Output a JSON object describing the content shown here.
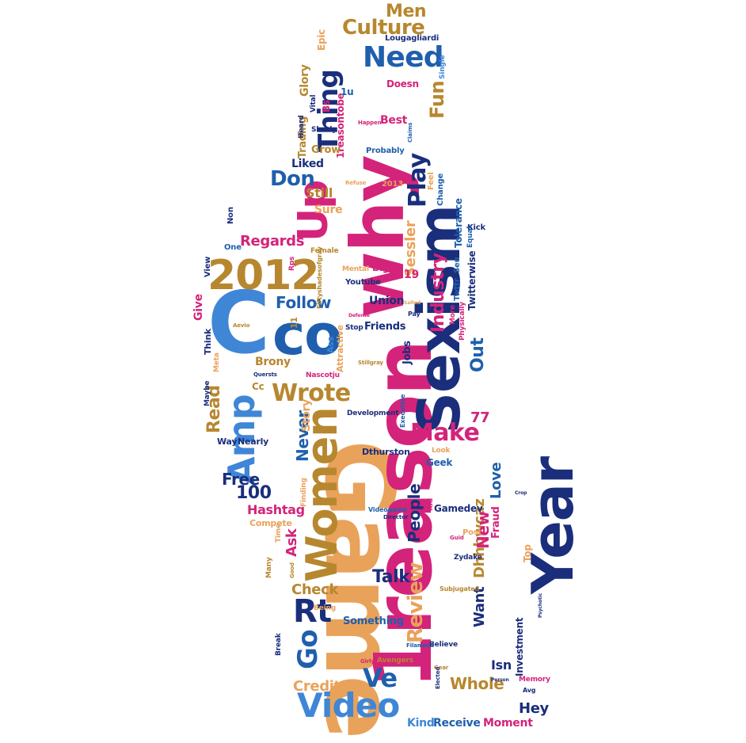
{
  "colors": {
    "navy": "#1a2e7c",
    "pink": "#d4237a",
    "gold": "#b7872f",
    "sky": "#3f86d6",
    "peach": "#e9a25a",
    "blue": "#1f5fad",
    "background": "#ffffff"
  },
  "words": {
    "game": "Game",
    "year": "Year",
    "onereason": "1reason",
    "why": "why",
    "co": "co",
    "c": "C",
    "sexism": "Sexism",
    "women": "Women",
    "amp": "Amp",
    "up": "Up",
    "y2012": "2012",
    "need": "Need",
    "thing": "Thing",
    "culture": "Culture",
    "men": "Men",
    "play": "Play",
    "fun": "Fun",
    "don": "Don",
    "industry": "Industry",
    "out": "Out",
    "make": "Make",
    "wrote": "Wrote",
    "read": "Read",
    "rt": "Rt",
    "go": "Go",
    "video": "Video",
    "ve": "Ve",
    "review": "Review",
    "want": "Want",
    "people": "People",
    "dhhbwcaz": "Dhhbwcaz",
    "never": "Never",
    "follow": "Follow",
    "regards": "Regards",
    "sessler": "Sessler",
    "love": "Love",
    "free": "Free",
    "n100": "100",
    "n77": "77",
    "hashtag": "Hashtag",
    "check": "Check",
    "talk": "Talk",
    "whole": "Whole",
    "credit": "Credit",
    "hey": "Hey",
    "receive": "Receive",
    "moment": "Moment",
    "kind": "Kind",
    "something": "Something",
    "isn": "Isn",
    "investment": "Investment",
    "new": "New",
    "ask": "Ask",
    "story": "Story",
    "brony": "Brony",
    "give": "Give",
    "still": "Still",
    "liked": "Liked",
    "sure": "Sure",
    "best": "Best",
    "glory": "Glory",
    "epic": "Epic",
    "lougagliardi": "Lougagliardi",
    "single": "Single",
    "doesn": "Doesn",
    "trading": "Trading",
    "vital": "Vital",
    "bs": "Bs",
    "onereasontobe": "1reasontobe",
    "onev": "1u",
    "grow": "Grow",
    "heard": "Heard",
    "slowly": "Slowly",
    "probably": "Probably",
    "claims": "Claims",
    "happen": "Happen",
    "feel": "Feel",
    "change": "Change",
    "n2013": "2013",
    "refuse": "Refuse",
    "kick": "Kick",
    "equal": "Equal",
    "tolerance": "Tolerance",
    "seu": "Seu",
    "twttr": "Twttr",
    "twitterwise": "Twitterwise",
    "physically": "Physically",
    "more": "More",
    "union": "Union",
    "bigot": "Bigot",
    "youtube": "Youtube",
    "mental": "Mental",
    "female": "Female",
    "fiftyshades": "Fiftyshadesofgray",
    "non": "Non",
    "one": "One",
    "view": "View",
    "rps": "Rps",
    "n19": "19",
    "friends": "Friends",
    "stop": "Stop",
    "pay": "Pay",
    "jobs": "Jobs",
    "attractive": "Attractive",
    "ass": "Ass",
    "n11": "11",
    "think": "Think",
    "meta": "Meta",
    "maybe": "Maybe",
    "nearly": "Nearly",
    "way": "Way",
    "cc": "Cc",
    "nascotju": "Nascotju",
    "stillgray": "Stillgray",
    "development": "Development",
    "executive": "Executive",
    "dthurston": "Dthurston",
    "look": "Look",
    "geek": "Geek",
    "fraud": "Fraud",
    "gamedev": "Gamedev",
    "kid": "Kid",
    "finding": "Finding",
    "compete": "Compete",
    "time": "Time",
    "many": "Many",
    "good": "Good",
    "videogame": "Videogame",
    "director": "Director",
    "post": "Post",
    "guid": "Guid",
    "zydake": "Zydake",
    "top": "Top",
    "subjugated": "Subjugated",
    "being": "Being",
    "believe": "Believe",
    "filamena": "Filamena",
    "girly": "Girly",
    "avengers": "Avengers",
    "gear": "Gear",
    "elected": "Elected",
    "person": "Person",
    "break": "Break",
    "memory": "Memory",
    "avg": "Avg",
    "psychotic": "Psychotic",
    "defense": "Defense",
    "salted": "Salted",
    "aevio": "Aevio",
    "quersts": "Quersts",
    "crop": "Crop"
  }
}
